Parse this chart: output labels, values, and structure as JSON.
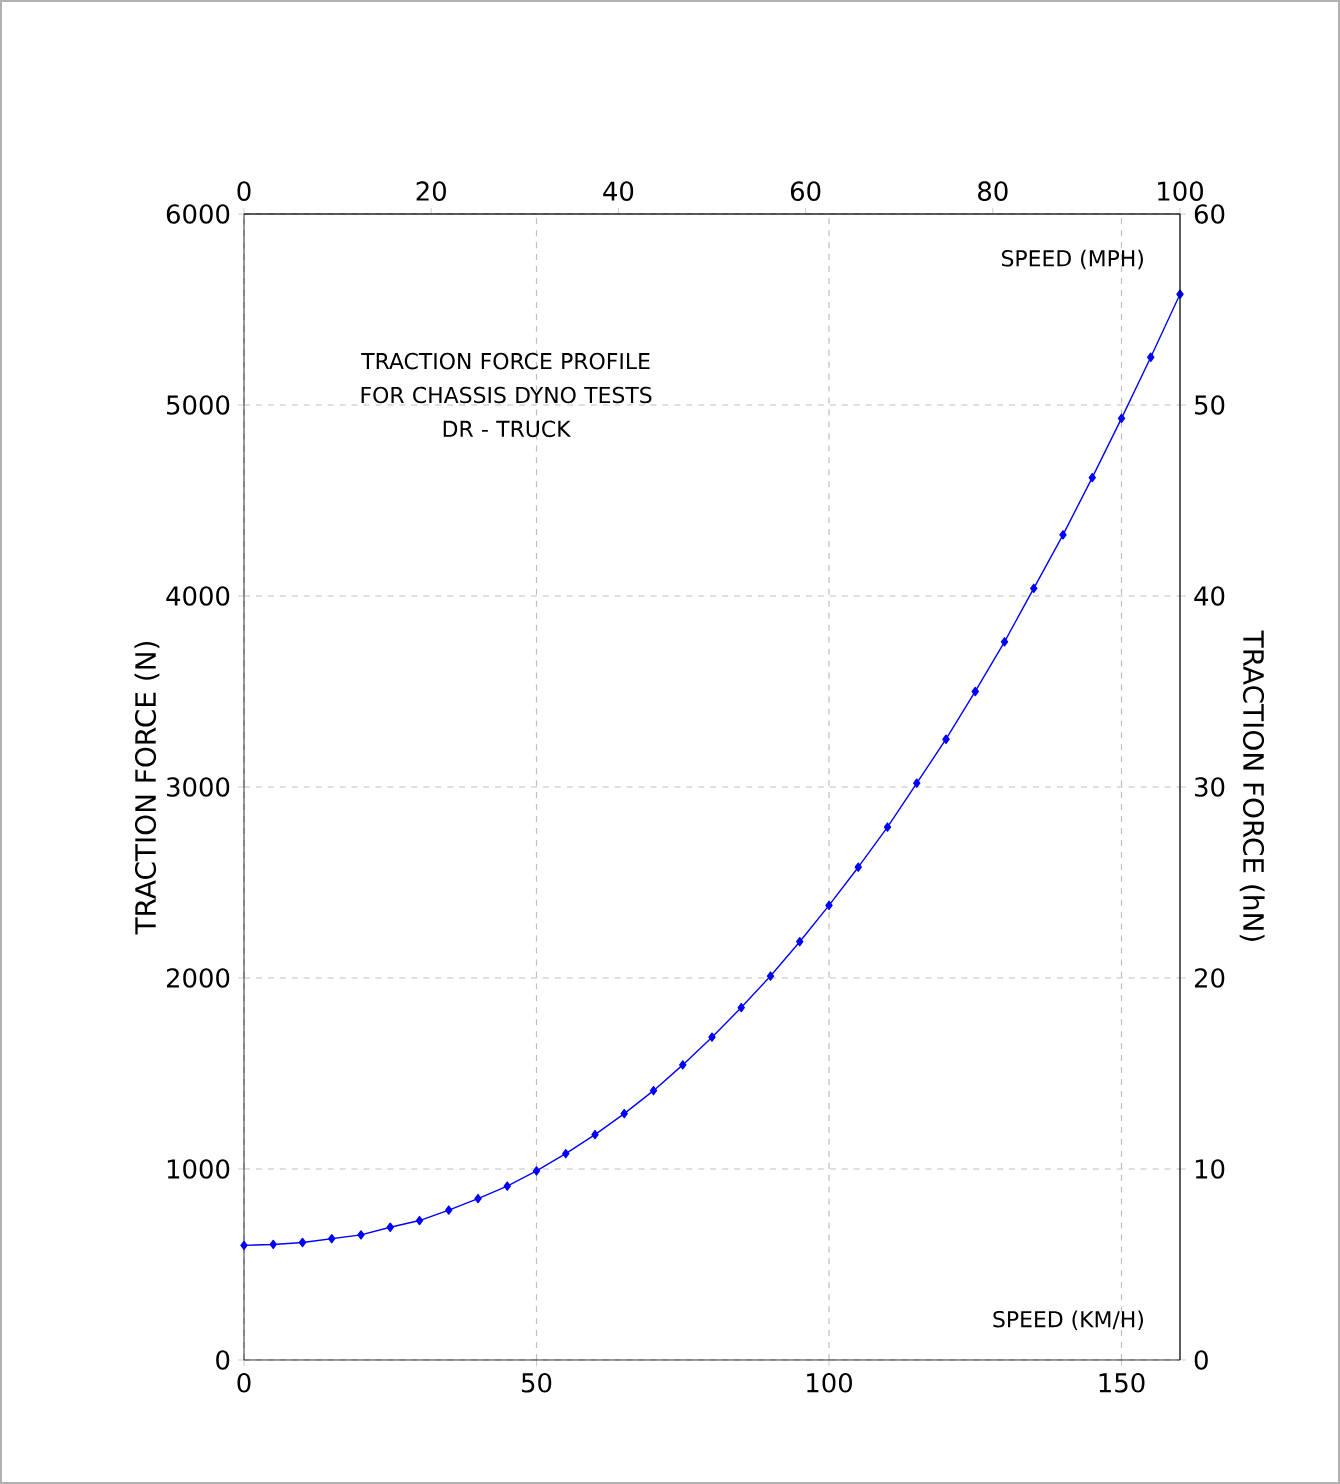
{
  "chart_data": {
    "type": "line",
    "title": "TRACTION FORCE PROFILE FOR CHASSIS DYNO TESTS",
    "subtitle": "DR - TRUCK",
    "xlabel": "SPEED (KM/H)",
    "x2label": "SPEED  (MPH)",
    "ylabel": "TRACTION FORCE (N)",
    "y2label": "TRACTION FORCE  (hN)",
    "x": [
      0,
      5,
      10,
      15,
      20,
      25,
      30,
      35,
      40,
      45,
      50,
      55,
      60,
      65,
      70,
      75,
      80,
      85,
      90,
      95,
      100,
      105,
      110,
      115,
      120,
      125,
      130,
      135,
      140,
      145,
      150,
      155,
      160
    ],
    "series": [
      {
        "color": "#0000ff",
        "values": [
          600,
          605,
          615,
          635,
          655,
          695,
          730,
          785,
          845,
          910,
          990,
          1080,
          1180,
          1290,
          1410,
          1545,
          1690,
          1845,
          2010,
          2190,
          2380,
          2580,
          2790,
          3020,
          3250,
          3500,
          3760,
          4040,
          4320,
          4620,
          4930,
          5250,
          5580
        ]
      }
    ],
    "xlim": [
      0,
      160
    ],
    "xticks": [
      0,
      50,
      100,
      150
    ],
    "ylim": [
      0,
      6000
    ],
    "yticks": [
      0,
      1000,
      2000,
      3000,
      4000,
      5000,
      6000
    ],
    "x2lim": [
      0,
      100
    ],
    "x2ticks": [
      0,
      20,
      40,
      60,
      80,
      100
    ],
    "y2lim": [
      0,
      60
    ],
    "y2ticks": [
      0,
      10,
      20,
      30,
      40,
      50,
      60
    ],
    "grid": true,
    "marker": "diamond",
    "line_style": "solid"
  }
}
